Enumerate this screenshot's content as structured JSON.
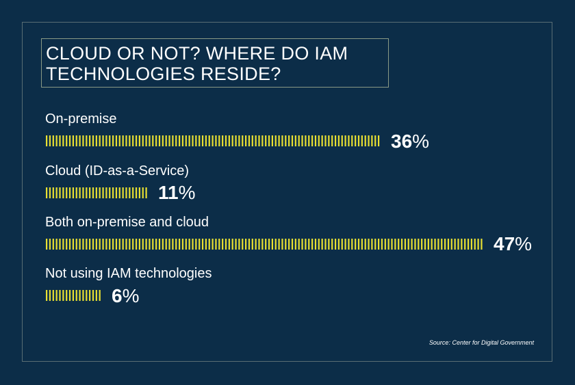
{
  "chart_data": {
    "type": "bar",
    "title": "CLOUD OR NOT? WHERE DO IAM TECHNOLOGIES RESIDE?",
    "title_lines": [
      "CLOUD OR NOT? WHERE DO IAM",
      "TECHNOLOGIES RESIDE?"
    ],
    "categories": [
      "On-premise",
      "Cloud (ID-as-a-Service)",
      "Both on-premise and cloud",
      "Not using IAM technologies"
    ],
    "values": [
      36,
      11,
      47,
      6
    ],
    "value_labels": [
      {
        "num": "36",
        "sign": "%"
      },
      {
        "num": "11",
        "sign": "%"
      },
      {
        "num": "47",
        "sign": "%"
      },
      {
        "num": "6",
        "sign": "%"
      }
    ],
    "xlim": [
      0,
      47
    ],
    "orientation": "horizontal",
    "grid": false,
    "legend": "none",
    "bar_style": "dashed tick marks",
    "bar_color": "#e8e032",
    "background_color": "#0c2d48",
    "text_color": "#ffffff"
  },
  "source": "Source: Center for Digital Government"
}
